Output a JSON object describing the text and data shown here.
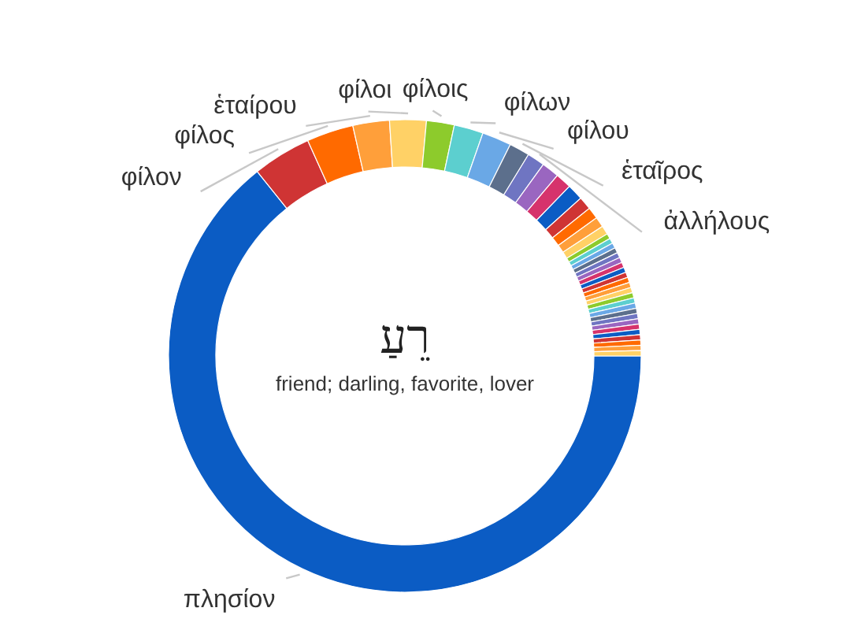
{
  "chart_data": {
    "type": "donut",
    "title": "רֵעַ",
    "subtitle": "friend; darling, favorite, lover",
    "categories": [
      "πλησίον",
      "φίλον",
      "φίλος",
      "ἑταίρου",
      "φίλοι",
      "φίλοις",
      "φίλων",
      "φίλου",
      "ἑταῖρος",
      "ἀλλήλους",
      null,
      null,
      null,
      null,
      null,
      null,
      null,
      null,
      null,
      null,
      null,
      null,
      null,
      null,
      null,
      null,
      null,
      null,
      null,
      null,
      null,
      null,
      null,
      null,
      null,
      null,
      null,
      null,
      null,
      null,
      null
    ],
    "values": [
      64.26,
      4.0,
      3.2,
      2.5,
      2.5,
      1.9,
      2.0,
      2.0,
      1.4,
      1.2,
      1.2,
      1.1,
      1.1,
      0.9,
      0.8,
      0.7,
      0.6,
      0.36,
      0.36,
      0.36,
      0.36,
      0.36,
      0.36,
      0.36,
      0.36,
      0.36,
      0.36,
      0.36,
      0.36,
      0.36,
      0.36,
      0.36,
      0.36,
      0.36,
      0.36,
      0.36,
      0.36,
      0.36,
      0.36,
      0.36,
      0.36
    ],
    "colors": [
      "#0b5cc4",
      "#cf3434",
      "#ff6a00",
      "#ff9f3a",
      "#ffd166",
      "#8dcb2c",
      "#5ccfcf",
      "#6aa8e6",
      "#5c6f8c",
      "#6f75c2",
      "#9a66c0",
      "#d6336c",
      "#0b5cc4",
      "#cf3434",
      "#ff6a00",
      "#ff9f3a",
      "#ffd166",
      "#8dcb2c",
      "#5ccfcf",
      "#6aa8e6",
      "#5c6f8c",
      "#6f75c2",
      "#9a66c0",
      "#d6336c",
      "#0b5cc4",
      "#cf3434",
      "#ff6a00",
      "#ff9f3a",
      "#ffd166",
      "#8dcb2c",
      "#5ccfcf",
      "#6aa8e6",
      "#5c6f8c",
      "#6f75c2",
      "#9a66c0",
      "#d6336c",
      "#0b5cc4",
      "#cf3434",
      "#ff6a00",
      "#ff9f3a",
      "#ffd166"
    ]
  }
}
